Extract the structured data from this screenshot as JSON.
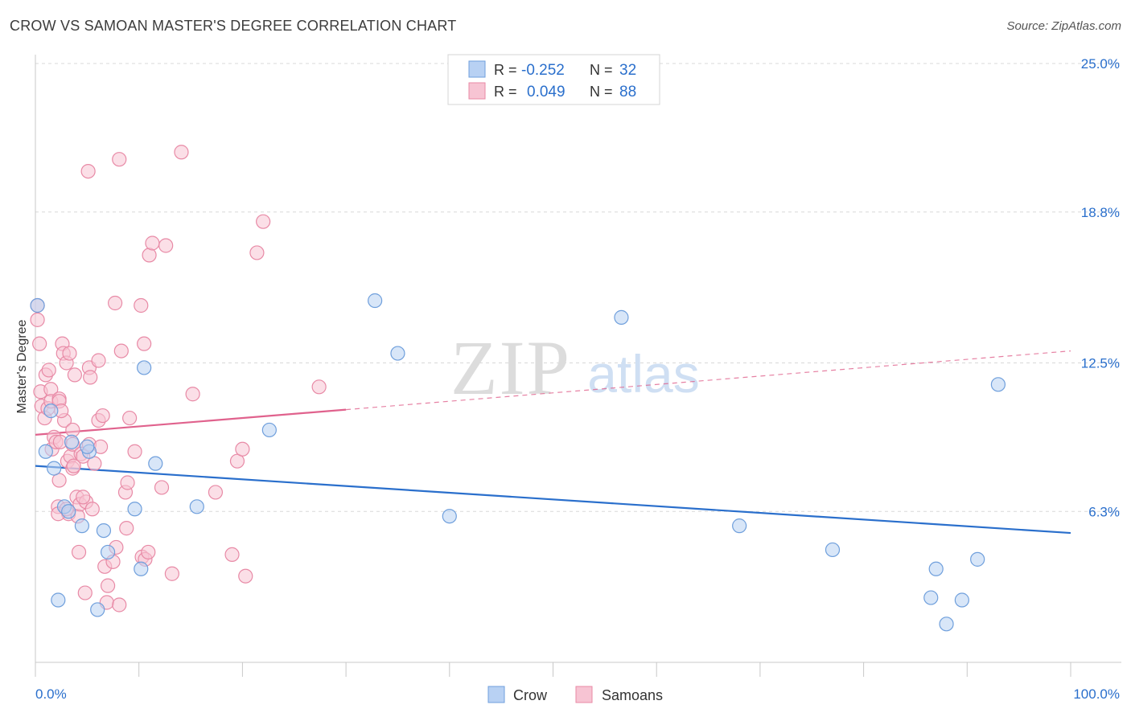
{
  "header": {
    "title": "CROW VS SAMOAN MASTER'S DEGREE CORRELATION CHART",
    "source": "Source: ZipAtlas.com"
  },
  "watermark": {
    "zip": "ZIP",
    "atlas": "atlas"
  },
  "legend_top": {
    "rows": [
      {
        "r_label": "R = ",
        "r_value": "-0.252",
        "n_label": "N = ",
        "n_value": "32"
      },
      {
        "r_label": "R = ",
        "r_value": "0.049",
        "n_label": "N = ",
        "n_value": "88"
      }
    ]
  },
  "colors": {
    "crow_fill": "#b8d1f3",
    "crow_stroke": "#6f9fdc",
    "crow_line": "#2a6fcc",
    "samoan_fill": "#f7c4d3",
    "samoan_stroke": "#e88aa6",
    "samoan_line": "#e0628d",
    "value_text": "#2a6fcc",
    "grid": "#d8d8d8"
  },
  "chart_data": {
    "type": "scatter",
    "ylabel": "Master's Degree",
    "x_ticks": [
      "0.0%",
      "100.0%"
    ],
    "y_ticks": [
      "6.3%",
      "12.5%",
      "18.8%",
      "25.0%"
    ],
    "y_tick_values": [
      6.3,
      12.5,
      18.8,
      25.0
    ],
    "xlim": [
      0,
      100
    ],
    "ylim": [
      0,
      25.5
    ],
    "grid": true,
    "legend_position": "bottom-center",
    "series": [
      {
        "name": "Crow",
        "trend": {
          "x": [
            0,
            100
          ],
          "y": [
            8.2,
            5.4
          ],
          "solid_to": 100
        },
        "points": [
          [
            0.2,
            14.9
          ],
          [
            1.0,
            8.8
          ],
          [
            1.5,
            10.5
          ],
          [
            1.8,
            8.1
          ],
          [
            2.2,
            2.6
          ],
          [
            2.8,
            6.5
          ],
          [
            3.2,
            6.3
          ],
          [
            3.5,
            9.2
          ],
          [
            4.5,
            5.7
          ],
          [
            5.2,
            8.8
          ],
          [
            5.0,
            9.0
          ],
          [
            6.0,
            2.2
          ],
          [
            6.6,
            5.5
          ],
          [
            7.0,
            4.6
          ],
          [
            10.2,
            3.9
          ],
          [
            10.5,
            12.3
          ],
          [
            11.6,
            8.3
          ],
          [
            9.6,
            6.4
          ],
          [
            15.6,
            6.5
          ],
          [
            22.6,
            9.7
          ],
          [
            32.8,
            15.1
          ],
          [
            35.0,
            12.9
          ],
          [
            40.0,
            6.1
          ],
          [
            56.6,
            14.4
          ],
          [
            68.0,
            5.7
          ],
          [
            77.0,
            4.7
          ],
          [
            86.5,
            2.7
          ],
          [
            87.0,
            3.9
          ],
          [
            88.0,
            1.6
          ],
          [
            89.5,
            2.6
          ],
          [
            91.0,
            4.3
          ],
          [
            93.0,
            11.6
          ]
        ]
      },
      {
        "name": "Samoans",
        "trend": {
          "x": [
            0,
            100
          ],
          "y": [
            9.5,
            13.0
          ],
          "solid_to": 30
        },
        "points": [
          [
            0.2,
            14.9
          ],
          [
            0.2,
            14.3
          ],
          [
            0.4,
            13.3
          ],
          [
            0.5,
            11.3
          ],
          [
            0.6,
            10.7
          ],
          [
            0.9,
            10.2
          ],
          [
            1.0,
            12.0
          ],
          [
            1.2,
            10.6
          ],
          [
            1.3,
            12.2
          ],
          [
            1.5,
            11.4
          ],
          [
            1.5,
            10.9
          ],
          [
            1.6,
            8.9
          ],
          [
            1.8,
            9.4
          ],
          [
            2.0,
            9.2
          ],
          [
            2.2,
            6.5
          ],
          [
            2.3,
            11.0
          ],
          [
            2.3,
            10.9
          ],
          [
            2.3,
            7.6
          ],
          [
            2.4,
            9.2
          ],
          [
            2.6,
            13.3
          ],
          [
            2.7,
            12.9
          ],
          [
            2.8,
            10.1
          ],
          [
            3.0,
            12.5
          ],
          [
            3.1,
            8.4
          ],
          [
            3.2,
            6.2
          ],
          [
            3.3,
            12.9
          ],
          [
            3.4,
            8.6
          ],
          [
            3.6,
            9.7
          ],
          [
            3.6,
            9.1
          ],
          [
            3.6,
            8.1
          ],
          [
            3.7,
            8.2
          ],
          [
            3.8,
            12.0
          ],
          [
            4.0,
            6.9
          ],
          [
            4.1,
            6.1
          ],
          [
            4.2,
            4.6
          ],
          [
            4.3,
            6.6
          ],
          [
            4.4,
            8.7
          ],
          [
            4.6,
            8.6
          ],
          [
            4.8,
            2.9
          ],
          [
            4.9,
            6.7
          ],
          [
            5.1,
            20.5
          ],
          [
            5.2,
            12.3
          ],
          [
            5.2,
            9.1
          ],
          [
            5.3,
            11.9
          ],
          [
            5.5,
            6.4
          ],
          [
            5.7,
            8.3
          ],
          [
            6.1,
            12.6
          ],
          [
            6.1,
            10.1
          ],
          [
            6.3,
            9.0
          ],
          [
            6.5,
            10.3
          ],
          [
            6.7,
            4.0
          ],
          [
            6.9,
            2.5
          ],
          [
            7.0,
            3.2
          ],
          [
            7.5,
            4.2
          ],
          [
            7.7,
            15.0
          ],
          [
            7.8,
            4.8
          ],
          [
            8.1,
            21.0
          ],
          [
            8.1,
            2.4
          ],
          [
            8.3,
            13.0
          ],
          [
            8.7,
            7.1
          ],
          [
            8.8,
            5.6
          ],
          [
            8.9,
            7.5
          ],
          [
            9.1,
            10.2
          ],
          [
            9.6,
            8.8
          ],
          [
            10.2,
            14.9
          ],
          [
            10.3,
            4.4
          ],
          [
            10.5,
            13.3
          ],
          [
            10.6,
            4.3
          ],
          [
            10.9,
            4.6
          ],
          [
            11.0,
            17.0
          ],
          [
            11.3,
            17.5
          ],
          [
            12.2,
            7.3
          ],
          [
            12.6,
            17.4
          ],
          [
            13.2,
            3.7
          ],
          [
            14.1,
            21.3
          ],
          [
            15.2,
            11.2
          ],
          [
            17.4,
            7.1
          ],
          [
            19.0,
            4.5
          ],
          [
            19.5,
            8.4
          ],
          [
            20.0,
            8.9
          ],
          [
            20.3,
            3.6
          ],
          [
            21.4,
            17.1
          ],
          [
            22.0,
            18.4
          ],
          [
            27.4,
            11.5
          ],
          [
            2.2,
            6.2
          ],
          [
            2.5,
            10.5
          ],
          [
            3.0,
            6.4
          ],
          [
            4.6,
            6.9
          ]
        ]
      }
    ]
  }
}
